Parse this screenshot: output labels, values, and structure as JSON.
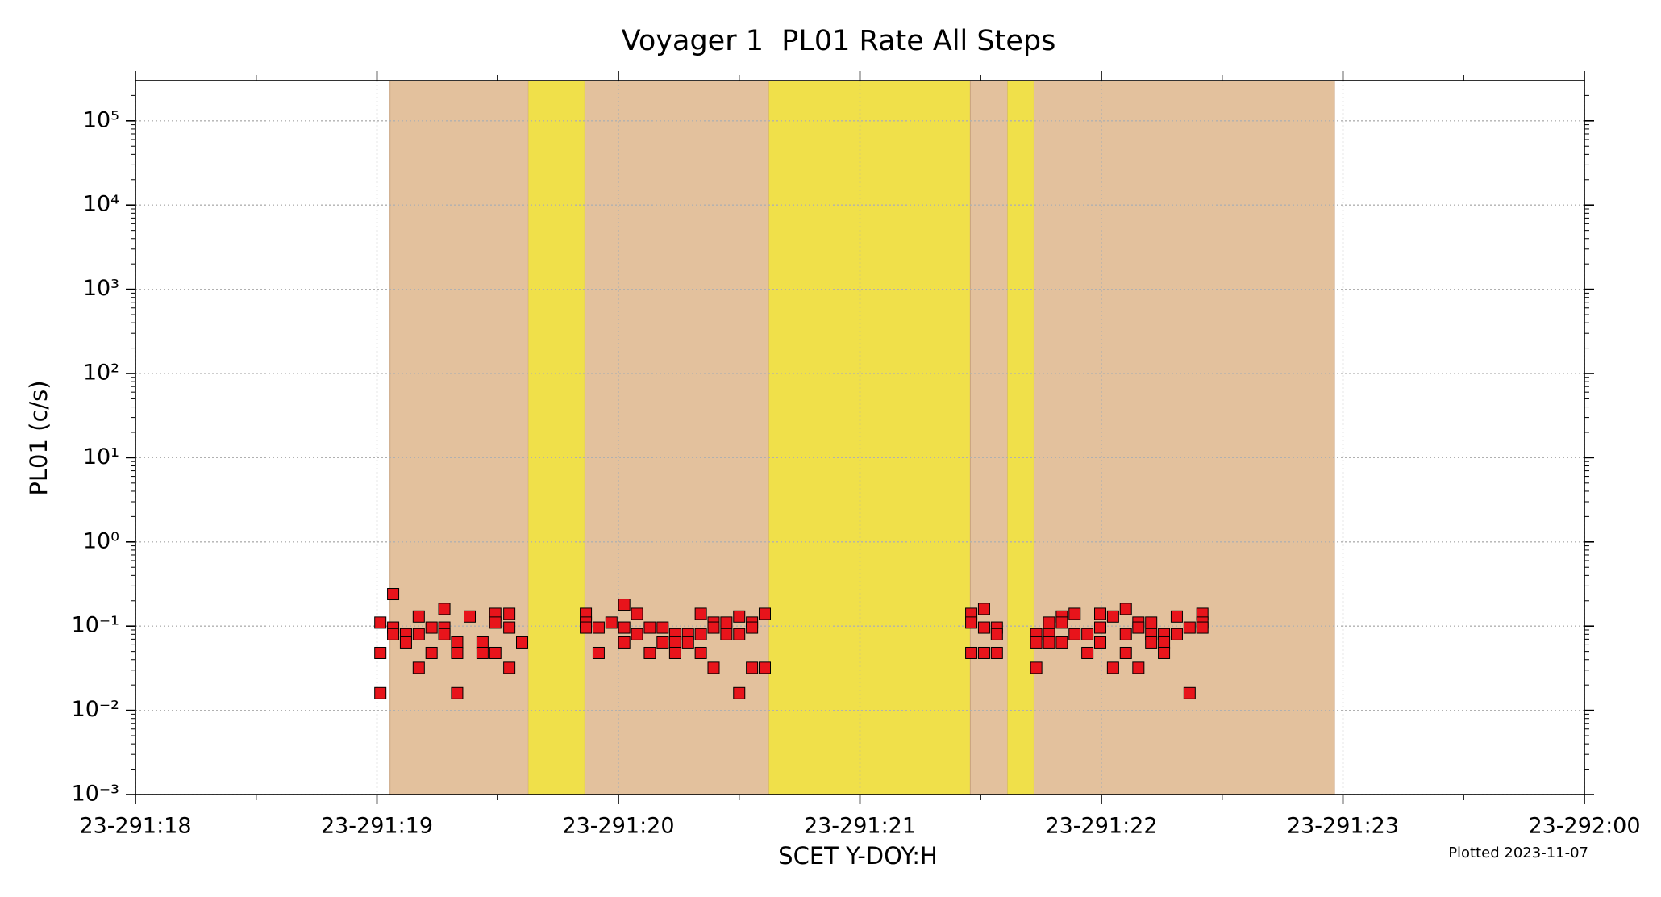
{
  "chart_data": {
    "type": "scatter",
    "title": "Voyager 1  PL01 Rate All Steps",
    "x_label": "SCET Y-DOY:H",
    "y_label": "PL01 (c/s)",
    "annotation": "Plotted 2023-11-07",
    "log_y": true,
    "grid": true,
    "xlim": [
      18,
      24
    ],
    "ylim": [
      0.001,
      300000
    ],
    "xticks": [
      {
        "value": 18,
        "label": "23-291:18"
      },
      {
        "value": 19,
        "label": "23-291:19"
      },
      {
        "value": 20,
        "label": "23-291:20"
      },
      {
        "value": 21,
        "label": "23-291:21"
      },
      {
        "value": 22,
        "label": "23-291:22"
      },
      {
        "value": 23,
        "label": "23-291:23"
      },
      {
        "value": 24,
        "label": "23-292:00"
      }
    ],
    "yticks": [
      {
        "value": 0.001,
        "label": "10⁻³"
      },
      {
        "value": 0.01,
        "label": "10⁻²"
      },
      {
        "value": 0.1,
        "label": "10⁻¹"
      },
      {
        "value": 1,
        "label": "10⁰"
      },
      {
        "value": 10,
        "label": "10¹"
      },
      {
        "value": 100,
        "label": "10²"
      },
      {
        "value": 1000,
        "label": "10³"
      },
      {
        "value": 10000,
        "label": "10⁴"
      },
      {
        "value": 100000,
        "label": "10⁵"
      }
    ],
    "spans": [
      {
        "x0": 19.054,
        "x1": 19.627,
        "color": "#e3c19d"
      },
      {
        "x0": 19.627,
        "x1": 19.861,
        "color": "#f0e04a"
      },
      {
        "x0": 19.861,
        "x1": 20.623,
        "color": "#e3c19d"
      },
      {
        "x0": 20.623,
        "x1": 21.457,
        "color": "#f0e04a"
      },
      {
        "x0": 21.457,
        "x1": 21.611,
        "color": "#e3c19d"
      },
      {
        "x0": 21.611,
        "x1": 21.721,
        "color": "#f0e04a"
      },
      {
        "x0": 21.721,
        "x1": 22.965,
        "color": "#e3c19d"
      }
    ],
    "x": [
      19.014,
      19.014,
      19.014,
      19.067,
      19.067,
      19.067,
      19.12,
      19.12,
      19.173,
      19.173,
      19.173,
      19.226,
      19.226,
      19.279,
      19.279,
      19.279,
      19.332,
      19.332,
      19.332,
      19.384,
      19.437,
      19.437,
      19.49,
      19.49,
      19.49,
      19.548,
      19.548,
      19.548,
      19.601,
      19.865,
      19.865,
      19.865,
      19.918,
      19.918,
      19.971,
      20.024,
      20.024,
      20.024,
      20.077,
      20.077,
      20.13,
      20.13,
      20.183,
      20.183,
      20.235,
      20.235,
      20.235,
      20.288,
      20.288,
      20.341,
      20.341,
      20.341,
      20.394,
      20.394,
      20.394,
      20.447,
      20.447,
      20.5,
      20.5,
      20.5,
      20.553,
      20.553,
      20.553,
      20.606,
      20.606,
      21.461,
      21.461,
      21.461,
      21.514,
      21.514,
      21.514,
      21.567,
      21.567,
      21.567,
      21.73,
      21.73,
      21.73,
      21.783,
      21.783,
      21.783,
      21.836,
      21.836,
      21.836,
      21.889,
      21.889,
      21.942,
      21.942,
      21.995,
      21.995,
      21.995,
      22.048,
      22.048,
      22.101,
      22.101,
      22.101,
      22.153,
      22.153,
      22.153,
      22.206,
      22.206,
      22.206,
      22.259,
      22.259,
      22.259,
      22.312,
      22.312,
      22.365,
      22.365,
      22.418,
      22.418,
      22.418
    ],
    "series": [
      {
        "color": "#e8141b",
        "values": [
          0.11,
          0.048,
          0.016,
          0.24,
          0.096,
          0.08,
          0.08,
          0.064,
          0.13,
          0.08,
          0.032,
          0.096,
          0.048,
          0.16,
          0.096,
          0.08,
          0.064,
          0.048,
          0.016,
          0.13,
          0.064,
          0.048,
          0.14,
          0.11,
          0.048,
          0.14,
          0.096,
          0.032,
          0.064,
          0.14,
          0.11,
          0.096,
          0.096,
          0.048,
          0.11,
          0.18,
          0.096,
          0.064,
          0.14,
          0.08,
          0.096,
          0.048,
          0.096,
          0.064,
          0.08,
          0.064,
          0.048,
          0.08,
          0.064,
          0.14,
          0.08,
          0.048,
          0.11,
          0.096,
          0.032,
          0.11,
          0.08,
          0.13,
          0.08,
          0.016,
          0.11,
          0.096,
          0.032,
          0.14,
          0.032,
          0.14,
          0.11,
          0.048,
          0.16,
          0.096,
          0.048,
          0.096,
          0.08,
          0.048,
          0.08,
          0.064,
          0.032,
          0.11,
          0.08,
          0.064,
          0.13,
          0.11,
          0.064,
          0.14,
          0.08,
          0.08,
          0.048,
          0.14,
          0.096,
          0.064,
          0.13,
          0.032,
          0.16,
          0.08,
          0.048,
          0.11,
          0.096,
          0.032,
          0.11,
          0.08,
          0.064,
          0.08,
          0.064,
          0.048,
          0.13,
          0.08,
          0.096,
          0.016,
          0.14,
          0.11,
          0.096
        ]
      }
    ]
  }
}
